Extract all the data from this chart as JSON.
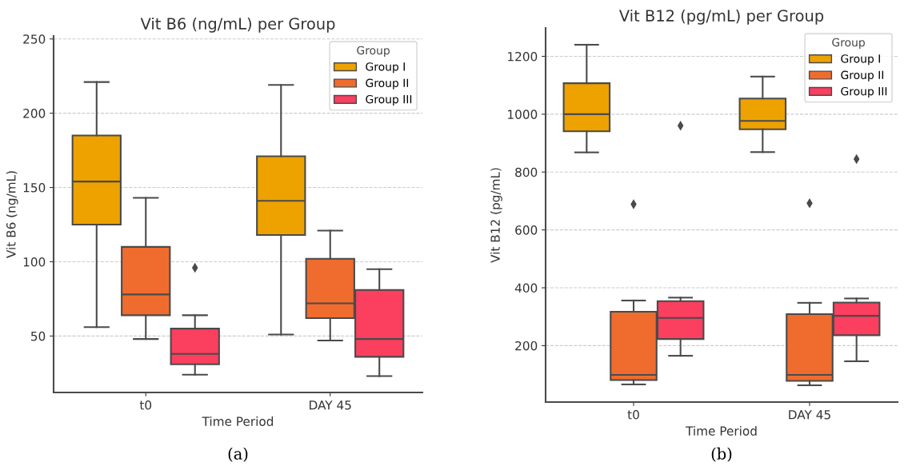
{
  "chart_data": [
    {
      "type": "box",
      "title": "Vit B6 (ng/mL) per Group",
      "xlabel": "Time Period",
      "ylabel": "Vit B6 (ng/mL)",
      "categories": [
        "t0",
        "DAY 45"
      ],
      "legend_title": "Group",
      "legend": "top right",
      "grid": "y",
      "ylim": [
        12,
        252
      ],
      "yticks": [
        50,
        100,
        150,
        200,
        250
      ],
      "annotations": [
        "(a)"
      ],
      "series": [
        {
          "name": "Group I",
          "color": "#eda200",
          "boxes": [
            {
              "low": 56,
              "q1": 125,
              "median": 154,
              "q3": 185,
              "high": 221
            },
            {
              "low": 51,
              "q1": 118,
              "median": 141,
              "q3": 171,
              "high": 219
            }
          ]
        },
        {
          "name": "Group II",
          "color": "#ef6c2e",
          "boxes": [
            {
              "low": 48,
              "q1": 64,
              "median": 78,
              "q3": 110,
              "high": 143
            },
            {
              "low": 47,
              "q1": 62,
              "median": 72,
              "q3": 102,
              "high": 121
            }
          ]
        },
        {
          "name": "Group III",
          "color": "#fb3f5f",
          "boxes": [
            {
              "low": 24,
              "q1": 31,
              "median": 38,
              "q3": 55,
              "high": 64,
              "outliers": [
                96
              ]
            },
            {
              "low": 23,
              "q1": 36,
              "median": 48,
              "q3": 81,
              "high": 95
            }
          ]
        }
      ]
    },
    {
      "type": "box",
      "title": "Vit B12 (pg/mL) per Group",
      "xlabel": "Time Period",
      "ylabel": "Vit B12 (pg/mL)",
      "categories": [
        "t0",
        "DAY 45"
      ],
      "legend_title": "Group",
      "legend": "top right",
      "grid": "y",
      "ylim": [
        5,
        1298
      ],
      "yticks": [
        200,
        400,
        600,
        800,
        1000,
        1200
      ],
      "annotations": [
        "(b)"
      ],
      "series": [
        {
          "name": "Group I",
          "color": "#eda200",
          "boxes": [
            {
              "low": 868,
              "q1": 941,
              "median": 1000,
              "q3": 1107,
              "high": 1240
            },
            {
              "low": 869,
              "q1": 948,
              "median": 977,
              "q3": 1054,
              "high": 1130
            }
          ]
        },
        {
          "name": "Group II",
          "color": "#ef6c2e",
          "boxes": [
            {
              "low": 66,
              "q1": 81,
              "median": 99,
              "q3": 317,
              "high": 356,
              "outliers": [
                689
              ]
            },
            {
              "low": 63,
              "q1": 78,
              "median": 99,
              "q3": 309,
              "high": 348,
              "outliers": [
                692
              ]
            }
          ]
        },
        {
          "name": "Group III",
          "color": "#fb3f5f",
          "boxes": [
            {
              "low": 165,
              "q1": 223,
              "median": 296,
              "q3": 354,
              "high": 366,
              "outliers": [
                960
              ]
            },
            {
              "low": 146,
              "q1": 236,
              "median": 303,
              "q3": 349,
              "high": 363,
              "outliers": [
                845
              ]
            }
          ]
        }
      ]
    }
  ]
}
